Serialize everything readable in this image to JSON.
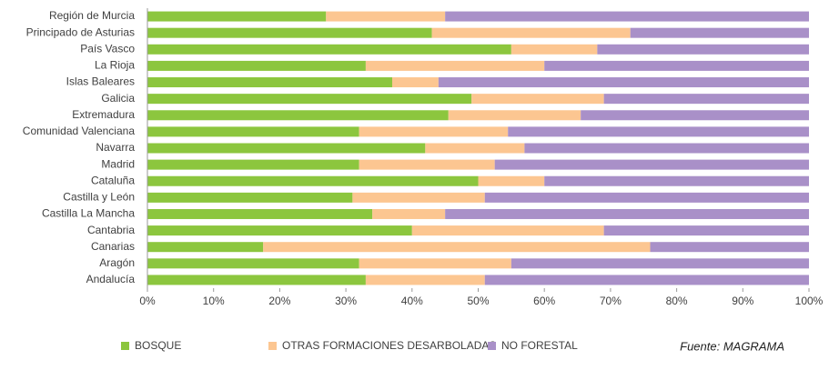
{
  "chart_data": {
    "type": "stacked_barh",
    "categories": [
      "Región de Murcia",
      "Principado de Asturias",
      "País Vasco",
      "La Rioja",
      "Islas Baleares",
      "Galicia",
      "Extremadura",
      "Comunidad Valenciana",
      "Navarra",
      "Madrid",
      "Cataluña",
      "Castilla y León",
      "Castilla La Mancha",
      "Cantabria",
      "Canarias",
      "Aragón",
      "Andalucía"
    ],
    "series": [
      {
        "name": "BOSQUE",
        "color": "#8cc63e",
        "values": [
          27,
          43,
          55,
          33,
          37,
          49,
          45.5,
          32,
          42,
          32,
          50,
          31,
          34,
          40,
          17.5,
          32,
          33
        ]
      },
      {
        "name": "OTRAS FORMACIONES DESARBOLADAS",
        "color": "#fcc691",
        "values": [
          18,
          30,
          13,
          27,
          7,
          20,
          20,
          22.5,
          15,
          20.5,
          10,
          20,
          11,
          29,
          58.5,
          23,
          18
        ]
      },
      {
        "name": "NO FORESTAL",
        "color": "#a990c8",
        "values": [
          55,
          27,
          32,
          40,
          56,
          31,
          34.5,
          45.5,
          43,
          47.5,
          40,
          49,
          55,
          31,
          24,
          45,
          49
        ]
      }
    ],
    "xlim": [
      0,
      100
    ],
    "xticks": [
      {
        "value": 0,
        "label": "0%"
      },
      {
        "value": 10,
        "label": "10%"
      },
      {
        "value": 20,
        "label": "20%"
      },
      {
        "value": 30,
        "label": "30%"
      },
      {
        "value": 40,
        "label": "40%"
      },
      {
        "value": 50,
        "label": "50%"
      },
      {
        "value": 60,
        "label": "60%"
      },
      {
        "value": 70,
        "label": "70%"
      },
      {
        "value": 80,
        "label": "80%"
      },
      {
        "value": 90,
        "label": "90%"
      },
      {
        "value": 100,
        "label": "100%"
      }
    ],
    "legend": "bottom",
    "annotation": "Fuente: MAGRAMA"
  }
}
